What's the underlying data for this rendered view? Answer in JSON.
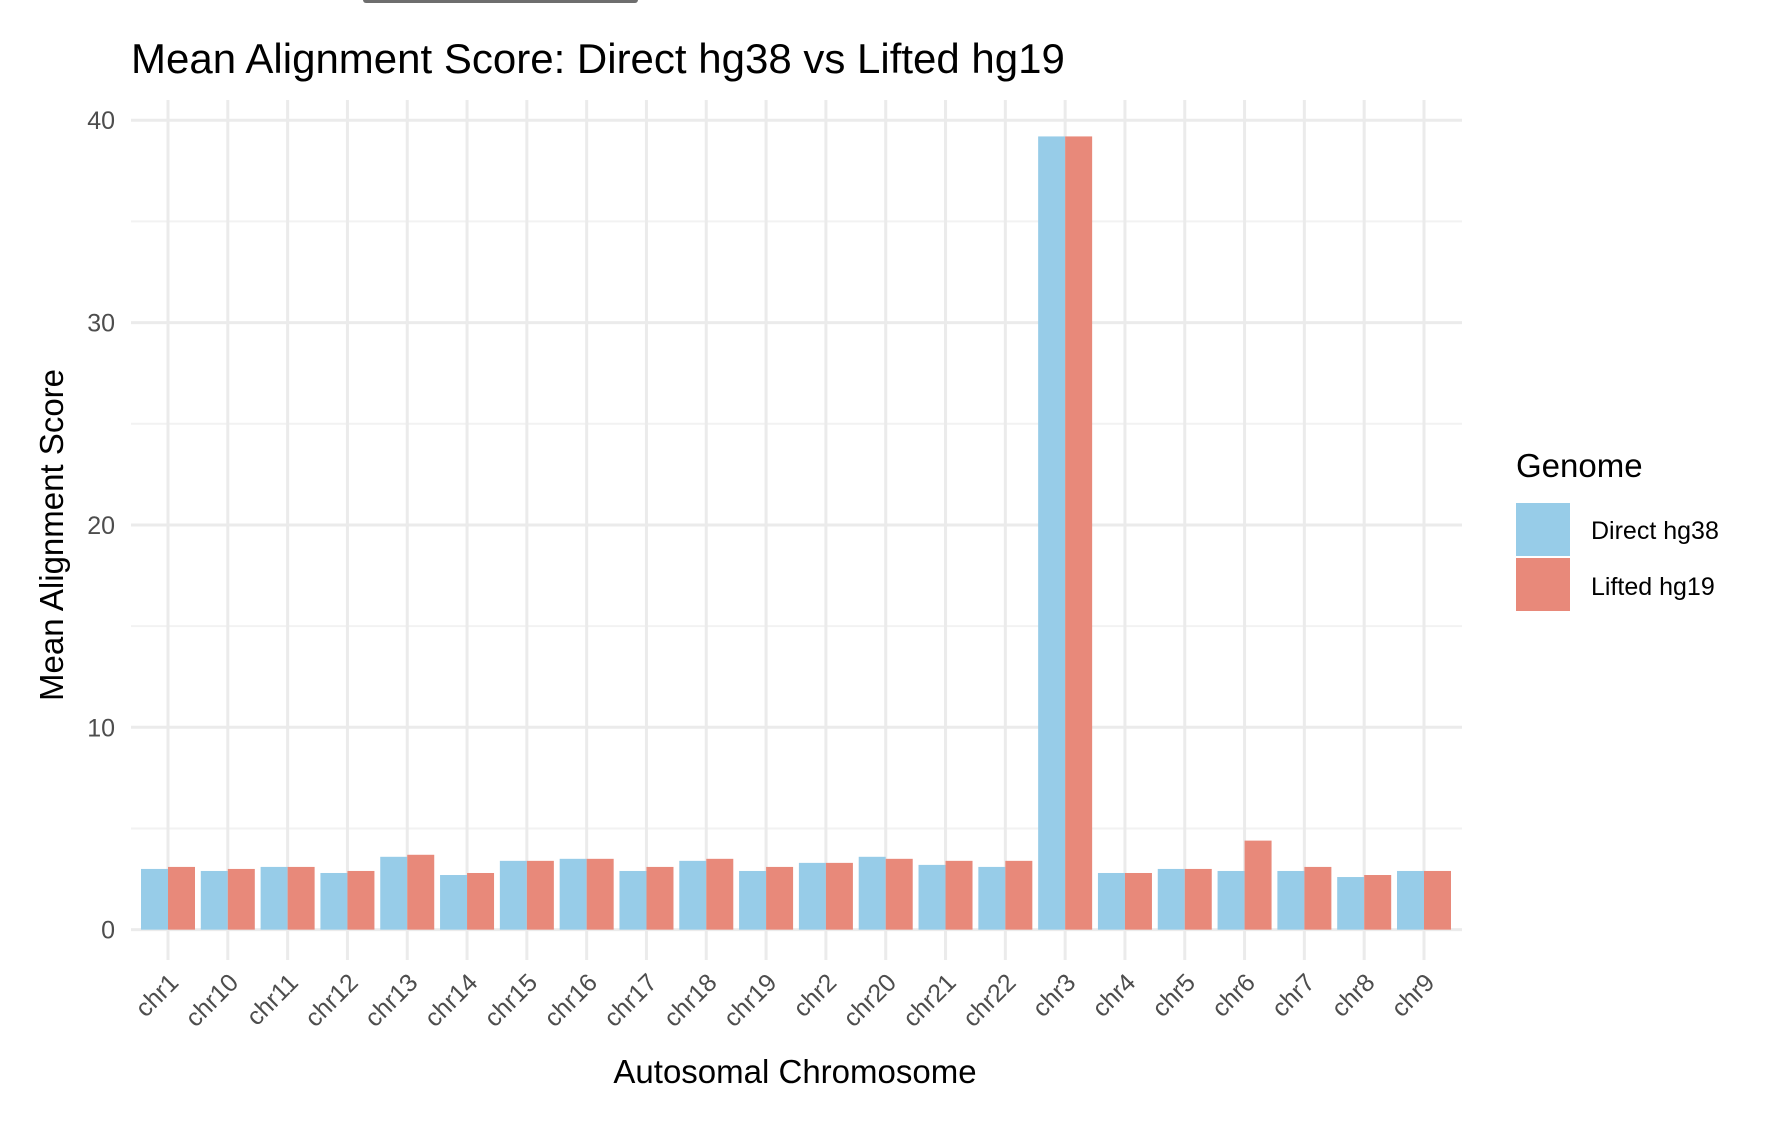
{
  "chart_data": {
    "type": "bar",
    "title": "Mean Alignment Score: Direct hg38 vs Lifted hg19",
    "xlabel": "Autosomal Chromosome",
    "ylabel": "Mean Alignment Score",
    "ylim": [
      -1.5,
      41
    ],
    "yticks": [
      0,
      10,
      20,
      30,
      40
    ],
    "grid": true,
    "legend_position": "right",
    "legend_title": "Genome",
    "categories": [
      "chr1",
      "chr10",
      "chr11",
      "chr12",
      "chr13",
      "chr14",
      "chr15",
      "chr16",
      "chr17",
      "chr18",
      "chr19",
      "chr2",
      "chr20",
      "chr21",
      "chr22",
      "chr3",
      "chr4",
      "chr5",
      "chr6",
      "chr7",
      "chr8",
      "chr9"
    ],
    "series": [
      {
        "name": "Direct hg38",
        "color": "#97CCE8",
        "values": [
          3.0,
          2.9,
          3.1,
          2.8,
          3.6,
          2.7,
          3.4,
          3.5,
          2.9,
          3.4,
          2.9,
          3.3,
          3.6,
          3.2,
          3.1,
          39.2,
          2.8,
          3.0,
          2.9,
          2.9,
          2.6,
          2.9
        ]
      },
      {
        "name": "Lifted hg19",
        "color": "#E8897A",
        "values": [
          3.1,
          3.0,
          3.1,
          2.9,
          3.7,
          2.8,
          3.4,
          3.5,
          3.1,
          3.5,
          3.1,
          3.3,
          3.5,
          3.4,
          3.4,
          39.2,
          2.8,
          3.0,
          4.4,
          3.1,
          2.7,
          2.9
        ]
      }
    ]
  }
}
